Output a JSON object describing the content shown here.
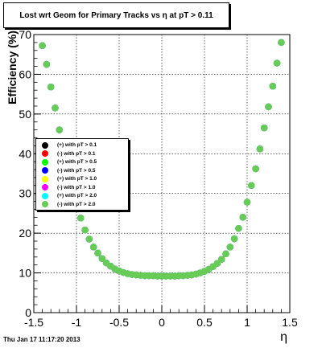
{
  "title": "Lost wrt Geom for Primary Tracks vs η at pT > 0.11",
  "footer": "Thu Jan 17 11:17:20 2013",
  "chart_data": {
    "type": "scatter",
    "xlabel": "η",
    "ylabel": "Efficiency (%)",
    "xlim": [
      -1.5,
      1.5
    ],
    "ylim": [
      0,
      70
    ],
    "xticks": [
      "-1.5",
      "-1",
      "-0.5",
      "0",
      "0.5",
      "1",
      "1.5"
    ],
    "yticks": [
      "0",
      "10",
      "20",
      "30",
      "40",
      "50",
      "60",
      "70"
    ],
    "grid": true,
    "legend_placement": "left-middle",
    "x": [
      -1.4,
      -1.35,
      -1.3,
      -1.25,
      -1.2,
      -1.15,
      -1.1,
      -1.05,
      -1.0,
      -0.95,
      -0.9,
      -0.85,
      -0.8,
      -0.75,
      -0.7,
      -0.65,
      -0.6,
      -0.55,
      -0.5,
      -0.45,
      -0.4,
      -0.35,
      -0.3,
      -0.25,
      -0.2,
      -0.15,
      -0.1,
      -0.05,
      0.0,
      0.05,
      0.1,
      0.15,
      0.2,
      0.25,
      0.3,
      0.35,
      0.4,
      0.45,
      0.5,
      0.55,
      0.6,
      0.65,
      0.7,
      0.75,
      0.8,
      0.85,
      0.9,
      0.95,
      1.0,
      1.05,
      1.1,
      1.15,
      1.2,
      1.25,
      1.3,
      1.35,
      1.4
    ],
    "series": [
      {
        "name": "(+) with pT > 0.1",
        "color": "#000000",
        "values": [
          67.2,
          62.5,
          56.8,
          51.5,
          46.0,
          41.0,
          36.0,
          31.6,
          27.8,
          23.8,
          20.8,
          18.5,
          16.5,
          15.0,
          13.6,
          12.5,
          11.7,
          11.0,
          10.5,
          10.1,
          9.8,
          9.6,
          9.5,
          9.4,
          9.3,
          9.3,
          9.3,
          9.2,
          9.2,
          9.2,
          9.2,
          9.2,
          9.3,
          9.3,
          9.4,
          9.5,
          9.7,
          10.0,
          10.4,
          10.9,
          11.6,
          12.4,
          13.4,
          14.8,
          16.5,
          18.6,
          21.2,
          24.0,
          27.8,
          32.0,
          36.2,
          41.2,
          46.5,
          51.8,
          57.0,
          62.8,
          68.0
        ]
      },
      {
        "name": "(-) with pT > 0.1",
        "color": "#ff0000",
        "values": [
          67.2,
          62.5,
          56.8,
          51.5,
          46.0,
          41.0,
          36.0,
          31.6,
          27.8,
          23.8,
          20.8,
          18.5,
          16.5,
          15.0,
          13.6,
          12.5,
          11.7,
          11.0,
          10.5,
          10.1,
          9.8,
          9.6,
          9.5,
          9.4,
          9.3,
          9.3,
          9.3,
          9.2,
          9.2,
          9.2,
          9.2,
          9.2,
          9.3,
          9.3,
          9.4,
          9.5,
          9.7,
          10.0,
          10.4,
          10.9,
          11.6,
          12.4,
          13.4,
          14.8,
          16.5,
          18.6,
          21.2,
          24.0,
          27.8,
          32.0,
          36.2,
          41.2,
          46.5,
          51.8,
          57.0,
          62.8,
          68.0
        ]
      },
      {
        "name": "(+) with pT > 0.5",
        "color": "#00ff00",
        "values": [
          67.2,
          62.5,
          56.8,
          51.5,
          46.0,
          41.0,
          36.0,
          31.6,
          27.8,
          23.8,
          20.8,
          18.5,
          16.5,
          15.0,
          13.6,
          12.5,
          11.7,
          11.0,
          10.5,
          10.1,
          9.8,
          9.6,
          9.5,
          9.4,
          9.3,
          9.3,
          9.3,
          9.2,
          9.2,
          9.2,
          9.2,
          9.2,
          9.3,
          9.3,
          9.4,
          9.5,
          9.7,
          10.0,
          10.4,
          10.9,
          11.6,
          12.4,
          13.4,
          14.8,
          16.5,
          18.6,
          21.2,
          24.0,
          27.8,
          32.0,
          36.2,
          41.2,
          46.5,
          51.8,
          57.0,
          62.8,
          68.0
        ]
      },
      {
        "name": "(-) with pT > 0.5",
        "color": "#0000ff",
        "values": [
          67.2,
          62.5,
          56.8,
          51.5,
          46.0,
          41.0,
          36.0,
          31.6,
          27.8,
          23.8,
          20.8,
          18.5,
          16.5,
          15.0,
          13.6,
          12.5,
          11.7,
          11.0,
          10.5,
          10.1,
          9.8,
          9.6,
          9.5,
          9.4,
          9.3,
          9.3,
          9.3,
          9.2,
          9.2,
          9.2,
          9.2,
          9.2,
          9.3,
          9.3,
          9.4,
          9.5,
          9.7,
          10.0,
          10.4,
          10.9,
          11.6,
          12.4,
          13.4,
          14.8,
          16.5,
          18.6,
          21.2,
          24.0,
          27.8,
          32.0,
          36.2,
          41.2,
          46.5,
          51.8,
          57.0,
          62.8,
          68.0
        ]
      },
      {
        "name": "(+) with pT > 1.0",
        "color": "#ffff00",
        "values": [
          67.2,
          62.5,
          56.8,
          51.5,
          46.0,
          41.0,
          36.0,
          31.6,
          27.8,
          23.8,
          20.8,
          18.5,
          16.5,
          15.0,
          13.6,
          12.5,
          11.7,
          11.0,
          10.5,
          10.1,
          9.8,
          9.6,
          9.5,
          9.4,
          9.3,
          9.3,
          9.3,
          9.2,
          9.2,
          9.2,
          9.2,
          9.2,
          9.3,
          9.3,
          9.4,
          9.5,
          9.7,
          10.0,
          10.4,
          10.9,
          11.6,
          12.4,
          13.4,
          14.8,
          16.5,
          18.6,
          21.2,
          24.0,
          27.8,
          32.0,
          36.2,
          41.2,
          46.5,
          51.8,
          57.0,
          62.8,
          68.0
        ]
      },
      {
        "name": "(-) with pT > 1.0",
        "color": "#ff00ff",
        "values": [
          67.2,
          62.5,
          56.8,
          51.5,
          46.0,
          41.0,
          36.0,
          31.6,
          27.8,
          23.8,
          20.8,
          18.5,
          16.5,
          15.0,
          13.6,
          12.5,
          11.7,
          11.0,
          10.5,
          10.1,
          9.8,
          9.6,
          9.5,
          9.4,
          9.3,
          9.3,
          9.3,
          9.2,
          9.2,
          9.2,
          9.2,
          9.2,
          9.3,
          9.3,
          9.4,
          9.5,
          9.7,
          10.0,
          10.4,
          10.9,
          11.6,
          12.4,
          13.4,
          14.8,
          16.5,
          18.6,
          21.2,
          24.0,
          27.8,
          32.0,
          36.2,
          41.2,
          46.5,
          51.8,
          57.0,
          62.8,
          68.0
        ]
      },
      {
        "name": "(+) with pT > 2.0",
        "color": "#00ffff",
        "values": [
          67.2,
          62.5,
          56.8,
          51.5,
          46.0,
          41.0,
          36.0,
          31.6,
          27.8,
          23.8,
          20.8,
          18.5,
          16.5,
          15.0,
          13.6,
          12.5,
          11.7,
          11.0,
          10.5,
          10.1,
          9.8,
          9.6,
          9.5,
          9.4,
          9.3,
          9.3,
          9.3,
          9.2,
          9.2,
          9.2,
          9.2,
          9.2,
          9.3,
          9.3,
          9.4,
          9.5,
          9.7,
          10.0,
          10.4,
          10.9,
          11.6,
          12.4,
          13.4,
          14.8,
          16.5,
          18.6,
          21.2,
          24.0,
          27.8,
          32.0,
          36.2,
          41.2,
          46.5,
          51.8,
          57.0,
          62.8,
          68.0
        ]
      },
      {
        "name": "(-) with pT > 2.0",
        "color": "#66cc55",
        "values": [
          67.2,
          62.5,
          56.8,
          51.5,
          46.0,
          41.0,
          36.0,
          31.6,
          27.8,
          23.8,
          20.8,
          18.5,
          16.5,
          15.0,
          13.6,
          12.5,
          11.7,
          11.0,
          10.5,
          10.1,
          9.8,
          9.6,
          9.5,
          9.4,
          9.3,
          9.3,
          9.3,
          9.2,
          9.2,
          9.2,
          9.2,
          9.2,
          9.3,
          9.3,
          9.4,
          9.5,
          9.7,
          10.0,
          10.4,
          10.9,
          11.6,
          12.4,
          13.4,
          14.8,
          16.5,
          18.6,
          21.2,
          24.0,
          27.8,
          32.0,
          36.2,
          41.2,
          46.5,
          51.8,
          57.0,
          62.8,
          68.0
        ]
      }
    ]
  }
}
